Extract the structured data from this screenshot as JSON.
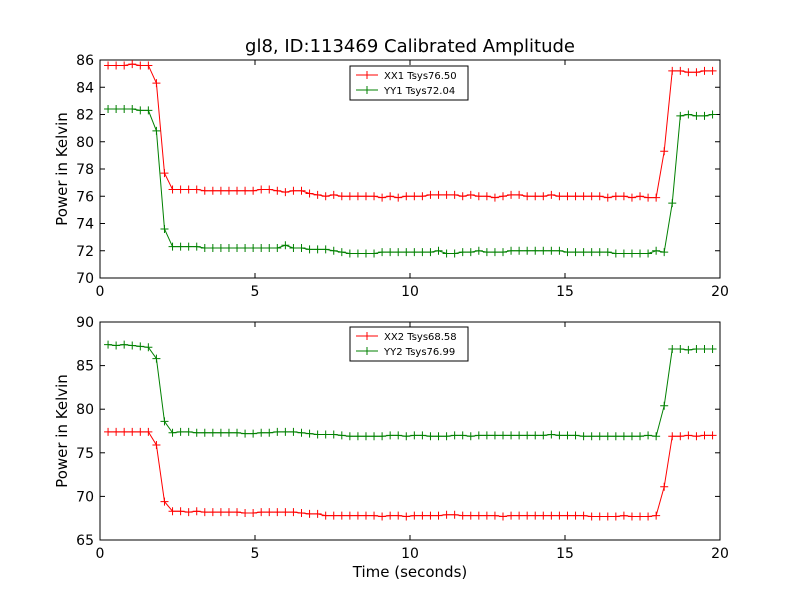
{
  "title": "gl8, ID:113469 Calibrated Amplitude",
  "chart_data": [
    {
      "type": "line",
      "xlabel": "",
      "ylabel": "Power in Kelvin",
      "xlim": [
        0,
        20
      ],
      "ylim": [
        70,
        86
      ],
      "xticks": [
        0,
        5,
        10,
        15,
        20
      ],
      "yticks": [
        70,
        72,
        74,
        76,
        78,
        80,
        82,
        84,
        86
      ],
      "legend_position": "top-center",
      "grid": false,
      "x": [
        0.26,
        0.52,
        0.78,
        1.04,
        1.3,
        1.56,
        1.82,
        2.08,
        2.34,
        2.6,
        2.86,
        3.12,
        3.38,
        3.64,
        3.9,
        4.16,
        4.42,
        4.68,
        4.94,
        5.2,
        5.46,
        5.72,
        5.98,
        6.24,
        6.5,
        6.76,
        7.02,
        7.28,
        7.54,
        7.8,
        8.06,
        8.32,
        8.58,
        8.84,
        9.1,
        9.36,
        9.62,
        9.88,
        10.14,
        10.4,
        10.66,
        10.92,
        11.18,
        11.44,
        11.7,
        11.96,
        12.22,
        12.48,
        12.74,
        13.0,
        13.26,
        13.52,
        13.78,
        14.04,
        14.3,
        14.56,
        14.82,
        15.08,
        15.34,
        15.6,
        15.86,
        16.12,
        16.38,
        16.64,
        16.9,
        17.16,
        17.42,
        17.68,
        17.94,
        18.2,
        18.46,
        18.72,
        18.98,
        19.24,
        19.5,
        19.76
      ],
      "series": [
        {
          "name": "XX1 Tsys76.50",
          "color": "#ff0000",
          "values": [
            85.6,
            85.6,
            85.6,
            85.7,
            85.6,
            85.6,
            84.3,
            77.7,
            76.5,
            76.5,
            76.5,
            76.5,
            76.4,
            76.4,
            76.4,
            76.4,
            76.4,
            76.4,
            76.4,
            76.5,
            76.5,
            76.4,
            76.3,
            76.4,
            76.4,
            76.2,
            76.1,
            76.0,
            76.1,
            76.0,
            76.0,
            76.0,
            76.0,
            76.0,
            75.9,
            76.0,
            75.9,
            76.0,
            76.0,
            76.0,
            76.1,
            76.1,
            76.1,
            76.1,
            76.0,
            76.1,
            76.0,
            76.0,
            75.9,
            76.0,
            76.1,
            76.1,
            76.0,
            76.0,
            76.0,
            76.1,
            76.0,
            76.0,
            76.0,
            76.0,
            76.0,
            76.0,
            75.9,
            76.0,
            76.0,
            75.9,
            76.0,
            75.9,
            75.9,
            79.3,
            85.2,
            85.2,
            85.1,
            85.1,
            85.2,
            85.2
          ]
        },
        {
          "name": "YY1 Tsys72.04",
          "color": "#008000",
          "values": [
            82.4,
            82.4,
            82.4,
            82.4,
            82.3,
            82.3,
            80.8,
            73.6,
            72.3,
            72.3,
            72.3,
            72.3,
            72.2,
            72.2,
            72.2,
            72.2,
            72.2,
            72.2,
            72.2,
            72.2,
            72.2,
            72.2,
            72.4,
            72.2,
            72.2,
            72.1,
            72.1,
            72.1,
            72.0,
            71.9,
            71.8,
            71.8,
            71.8,
            71.8,
            71.9,
            71.9,
            71.9,
            71.9,
            71.9,
            71.9,
            71.9,
            72.0,
            71.8,
            71.8,
            71.9,
            71.9,
            72.0,
            71.9,
            71.9,
            71.9,
            72.0,
            72.0,
            72.0,
            72.0,
            72.0,
            72.0,
            72.0,
            71.9,
            71.9,
            71.9,
            71.9,
            71.9,
            71.9,
            71.8,
            71.8,
            71.8,
            71.8,
            71.8,
            72.0,
            71.9,
            75.5,
            81.9,
            82.0,
            81.9,
            81.9,
            82.0
          ]
        }
      ]
    },
    {
      "type": "line",
      "xlabel": "Time (seconds)",
      "ylabel": "Power in Kelvin",
      "xlim": [
        0,
        20
      ],
      "ylim": [
        65,
        90
      ],
      "xticks": [
        0,
        5,
        10,
        15,
        20
      ],
      "yticks": [
        65,
        70,
        75,
        80,
        85,
        90
      ],
      "legend_position": "top-center",
      "grid": false,
      "x": [
        0.26,
        0.52,
        0.78,
        1.04,
        1.3,
        1.56,
        1.82,
        2.08,
        2.34,
        2.6,
        2.86,
        3.12,
        3.38,
        3.64,
        3.9,
        4.16,
        4.42,
        4.68,
        4.94,
        5.2,
        5.46,
        5.72,
        5.98,
        6.24,
        6.5,
        6.76,
        7.02,
        7.28,
        7.54,
        7.8,
        8.06,
        8.32,
        8.58,
        8.84,
        9.1,
        9.36,
        9.62,
        9.88,
        10.14,
        10.4,
        10.66,
        10.92,
        11.18,
        11.44,
        11.7,
        11.96,
        12.22,
        12.48,
        12.74,
        13.0,
        13.26,
        13.52,
        13.78,
        14.04,
        14.3,
        14.56,
        14.82,
        15.08,
        15.34,
        15.6,
        15.86,
        16.12,
        16.38,
        16.64,
        16.9,
        17.16,
        17.42,
        17.68,
        17.94,
        18.2,
        18.46,
        18.72,
        18.98,
        19.24,
        19.5,
        19.76
      ],
      "series": [
        {
          "name": "XX2 Tsys68.58",
          "color": "#ff0000",
          "values": [
            77.4,
            77.4,
            77.4,
            77.4,
            77.4,
            77.4,
            75.9,
            69.4,
            68.3,
            68.3,
            68.2,
            68.3,
            68.2,
            68.2,
            68.2,
            68.2,
            68.2,
            68.1,
            68.1,
            68.2,
            68.2,
            68.2,
            68.2,
            68.2,
            68.1,
            68.0,
            68.0,
            67.8,
            67.8,
            67.8,
            67.8,
            67.8,
            67.8,
            67.8,
            67.7,
            67.8,
            67.8,
            67.7,
            67.8,
            67.8,
            67.8,
            67.8,
            67.9,
            67.9,
            67.8,
            67.8,
            67.8,
            67.8,
            67.8,
            67.7,
            67.8,
            67.8,
            67.8,
            67.8,
            67.8,
            67.8,
            67.8,
            67.8,
            67.8,
            67.8,
            67.7,
            67.7,
            67.7,
            67.7,
            67.8,
            67.7,
            67.7,
            67.7,
            67.8,
            71.1,
            76.9,
            76.9,
            77.0,
            76.9,
            77.0,
            77.0
          ]
        },
        {
          "name": "YY2 Tsys76.99",
          "color": "#008000",
          "values": [
            87.4,
            87.3,
            87.4,
            87.3,
            87.2,
            87.1,
            85.8,
            78.6,
            77.3,
            77.4,
            77.4,
            77.3,
            77.3,
            77.3,
            77.3,
            77.3,
            77.3,
            77.2,
            77.2,
            77.3,
            77.3,
            77.4,
            77.4,
            77.4,
            77.3,
            77.2,
            77.1,
            77.1,
            77.1,
            77.0,
            76.9,
            76.9,
            76.9,
            76.9,
            76.9,
            77.0,
            77.0,
            76.9,
            77.0,
            77.0,
            76.9,
            76.9,
            76.9,
            77.0,
            77.0,
            76.9,
            77.0,
            77.0,
            77.0,
            77.0,
            77.0,
            77.0,
            77.0,
            77.0,
            77.0,
            77.1,
            77.0,
            77.0,
            77.0,
            76.9,
            76.9,
            76.9,
            76.9,
            76.9,
            76.9,
            76.9,
            76.9,
            77.0,
            76.9,
            80.4,
            86.9,
            86.9,
            86.8,
            86.9,
            86.9,
            86.9
          ]
        }
      ]
    }
  ]
}
